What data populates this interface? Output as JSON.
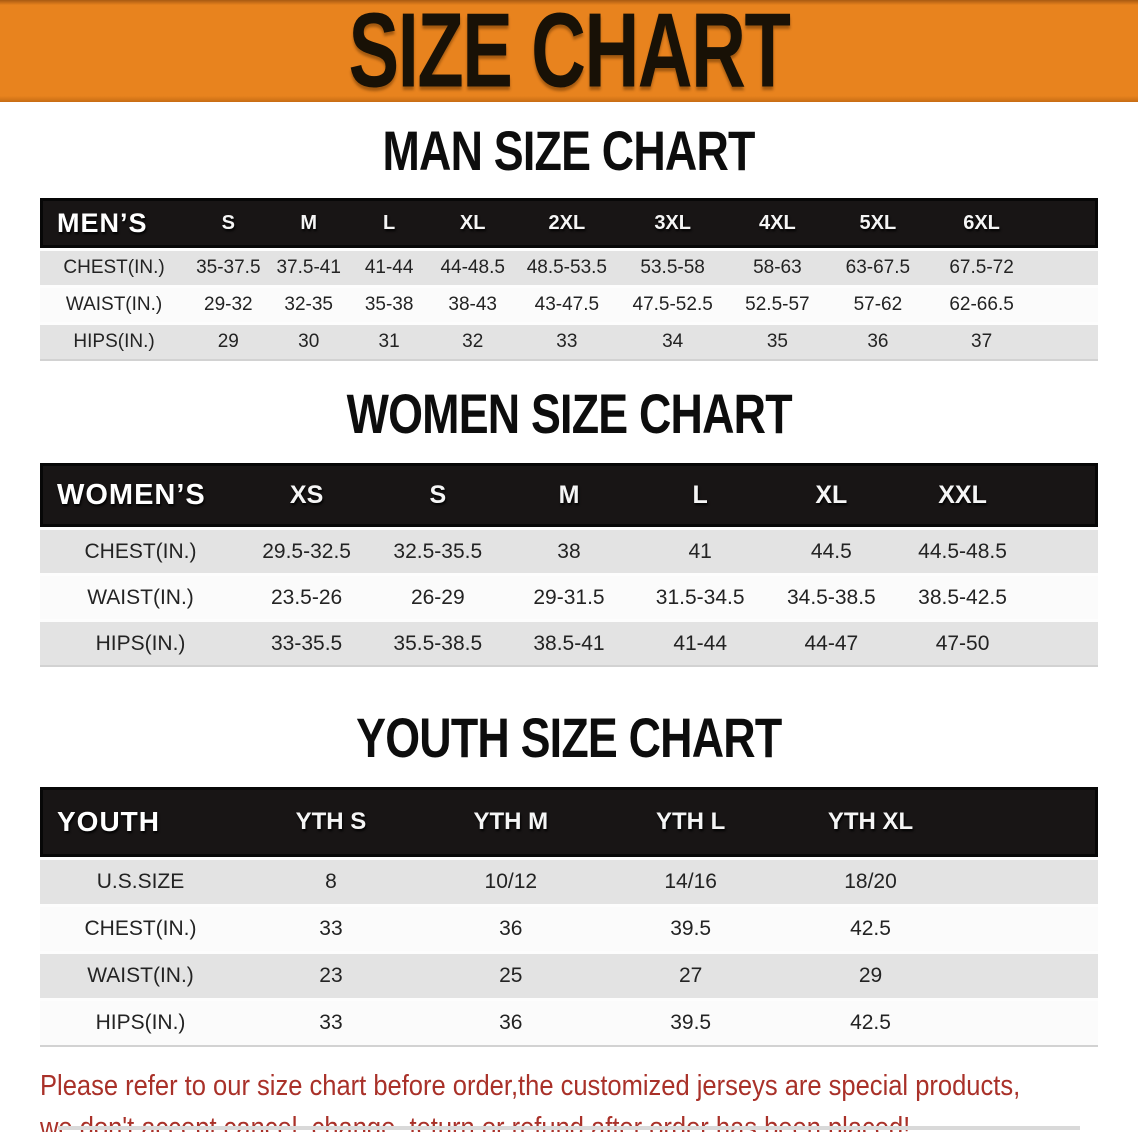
{
  "banner": {
    "title": "SIZE CHART"
  },
  "sections": [
    {
      "heading": "MAN SIZE CHART",
      "corner_label": "MEN’S",
      "columns": [
        "S",
        "M",
        "L",
        "XL",
        "2XL",
        "3XL",
        "4XL",
        "5XL",
        "6XL"
      ],
      "rows": [
        {
          "label": "CHEST(IN.)",
          "values": [
            "35-37.5",
            "37.5-41",
            "41-44",
            "44-48.5",
            "48.5-53.5",
            "53.5-58",
            "58-63",
            "63-67.5",
            "67.5-72"
          ]
        },
        {
          "label": "WAIST(IN.)",
          "values": [
            "29-32",
            "32-35",
            "35-38",
            "38-43",
            "43-47.5",
            "47.5-52.5",
            "52.5-57",
            "57-62",
            "62-66.5"
          ]
        },
        {
          "label": "HIPS(IN.)",
          "values": [
            "29",
            "30",
            "31",
            "32",
            "33",
            "34",
            "35",
            "36",
            "37"
          ]
        }
      ]
    },
    {
      "heading": "WOMEN SIZE CHART",
      "corner_label": "WOMEN’S",
      "columns": [
        "XS",
        "S",
        "M",
        "L",
        "XL",
        "XXL"
      ],
      "rows": [
        {
          "label": "CHEST(IN.)",
          "values": [
            "29.5-32.5",
            "32.5-35.5",
            "38",
            "41",
            "44.5",
            "44.5-48.5"
          ]
        },
        {
          "label": "WAIST(IN.)",
          "values": [
            "23.5-26",
            "26-29",
            "29-31.5",
            "31.5-34.5",
            "34.5-38.5",
            "38.5-42.5"
          ]
        },
        {
          "label": "HIPS(IN.)",
          "values": [
            "33-35.5",
            "35.5-38.5",
            "38.5-41",
            "41-44",
            "44-47",
            "47-50"
          ]
        }
      ]
    },
    {
      "heading": "YOUTH SIZE CHART",
      "corner_label": "YOUTH",
      "columns": [
        "YTH S",
        "YTH M",
        "YTH L",
        "YTH XL"
      ],
      "rows": [
        {
          "label": "U.S.SIZE",
          "values": [
            "8",
            "10/12",
            "14/16",
            "18/20"
          ]
        },
        {
          "label": "CHEST(IN.)",
          "values": [
            "33",
            "36",
            "39.5",
            "42.5"
          ]
        },
        {
          "label": "WAIST(IN.)",
          "values": [
            "23",
            "25",
            "27",
            "29"
          ]
        },
        {
          "label": "HIPS(IN.)",
          "values": [
            "33",
            "36",
            "39.5",
            "42.5"
          ]
        }
      ]
    }
  ],
  "footer": {
    "line1": "Please refer to our size chart before order,the customized jerseys are special products,",
    "line2": "we don't accept cancel, change, teturn or refund after order has been placed!"
  },
  "colors": {
    "banner_orange": "#E8831E",
    "table_header_black": "#181515",
    "row_gray": "#E3E3E3",
    "row_white": "#FBFBFB",
    "footer_red": "#A93129"
  }
}
